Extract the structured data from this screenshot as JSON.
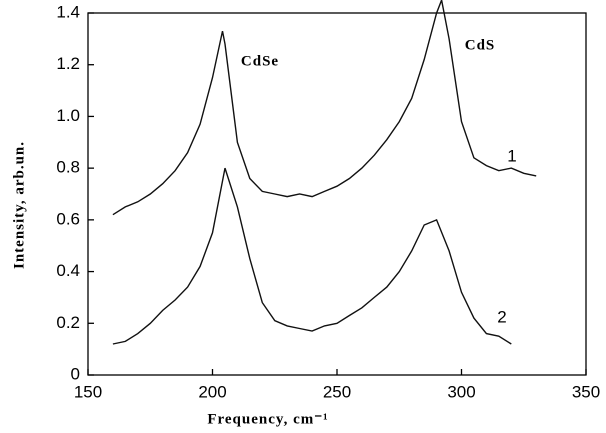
{
  "chart_data": {
    "type": "line",
    "x_label": "Frequency, cm⁻¹",
    "y_label": "Intensity, arb.un.",
    "annotations": [
      "CdSe",
      "CdS"
    ],
    "xlim": [
      150,
      350
    ],
    "xticks": [
      150,
      200,
      250,
      300,
      350
    ],
    "ylim": [
      0,
      1.4
    ],
    "yticks": [
      0,
      0.2,
      0.4,
      0.6,
      0.8,
      {
        "value": 1,
        "label": "1.0"
      },
      1.2,
      1.4
    ],
    "series": [
      {
        "name": "1",
        "color": "#111111",
        "x": [
          160,
          165,
          170,
          175,
          180,
          185,
          190,
          195,
          200,
          204,
          205,
          210,
          215,
          220,
          225,
          230,
          235,
          240,
          245,
          250,
          255,
          260,
          265,
          270,
          275,
          280,
          285,
          290,
          292,
          295,
          300,
          305,
          310,
          315,
          320,
          325,
          330
        ],
        "values": [
          0.62,
          0.65,
          0.67,
          0.7,
          0.74,
          0.79,
          0.86,
          0.97,
          1.15,
          1.33,
          1.28,
          0.9,
          0.76,
          0.71,
          0.7,
          0.69,
          0.7,
          0.69,
          0.71,
          0.73,
          0.76,
          0.8,
          0.85,
          0.91,
          0.98,
          1.07,
          1.22,
          1.4,
          1.45,
          1.3,
          0.98,
          0.84,
          0.81,
          0.79,
          0.8,
          0.78,
          0.77
        ]
      },
      {
        "name": "2",
        "color": "#111111",
        "x": [
          160,
          165,
          170,
          175,
          180,
          185,
          190,
          195,
          200,
          205,
          210,
          215,
          220,
          225,
          230,
          235,
          240,
          245,
          250,
          255,
          260,
          265,
          270,
          275,
          280,
          285,
          290,
          295,
          300,
          305,
          310,
          315,
          320
        ],
        "values": [
          0.12,
          0.13,
          0.16,
          0.2,
          0.25,
          0.29,
          0.34,
          0.42,
          0.55,
          0.8,
          0.65,
          0.45,
          0.28,
          0.21,
          0.19,
          0.18,
          0.17,
          0.19,
          0.2,
          0.23,
          0.26,
          0.3,
          0.34,
          0.4,
          0.48,
          0.58,
          0.6,
          0.48,
          0.32,
          0.22,
          0.16,
          0.15,
          0.12
        ]
      }
    ]
  }
}
